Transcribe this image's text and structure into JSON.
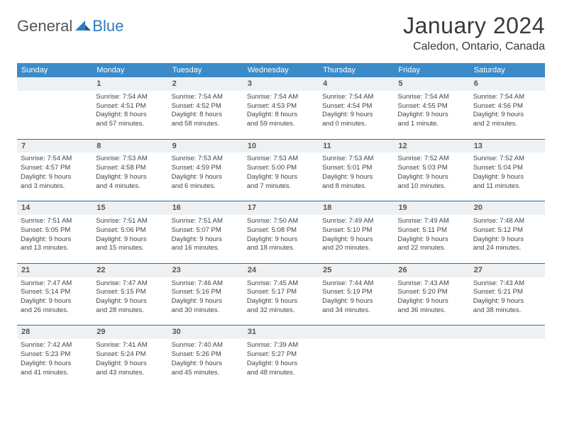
{
  "logo": {
    "general": "General",
    "blue": "Blue",
    "tri_color": "#2f7bbf"
  },
  "header": {
    "title": "January 2024",
    "location": "Caledon, Ontario, Canada"
  },
  "colors": {
    "header_bg": "#3b8bc9",
    "header_fg": "#ffffff",
    "daynum_bg": "#eef1f3",
    "border_color": "#2d6ea5",
    "text_color": "#444444"
  },
  "days_of_week": [
    "Sunday",
    "Monday",
    "Tuesday",
    "Wednesday",
    "Thursday",
    "Friday",
    "Saturday"
  ],
  "weeks": [
    {
      "nums": [
        "",
        "1",
        "2",
        "3",
        "4",
        "5",
        "6"
      ],
      "cells": [
        null,
        {
          "sr": "Sunrise: 7:54 AM",
          "ss": "Sunset: 4:51 PM",
          "d1": "Daylight: 8 hours",
          "d2": "and 57 minutes."
        },
        {
          "sr": "Sunrise: 7:54 AM",
          "ss": "Sunset: 4:52 PM",
          "d1": "Daylight: 8 hours",
          "d2": "and 58 minutes."
        },
        {
          "sr": "Sunrise: 7:54 AM",
          "ss": "Sunset: 4:53 PM",
          "d1": "Daylight: 8 hours",
          "d2": "and 59 minutes."
        },
        {
          "sr": "Sunrise: 7:54 AM",
          "ss": "Sunset: 4:54 PM",
          "d1": "Daylight: 9 hours",
          "d2": "and 0 minutes."
        },
        {
          "sr": "Sunrise: 7:54 AM",
          "ss": "Sunset: 4:55 PM",
          "d1": "Daylight: 9 hours",
          "d2": "and 1 minute."
        },
        {
          "sr": "Sunrise: 7:54 AM",
          "ss": "Sunset: 4:56 PM",
          "d1": "Daylight: 9 hours",
          "d2": "and 2 minutes."
        }
      ]
    },
    {
      "nums": [
        "7",
        "8",
        "9",
        "10",
        "11",
        "12",
        "13"
      ],
      "cells": [
        {
          "sr": "Sunrise: 7:54 AM",
          "ss": "Sunset: 4:57 PM",
          "d1": "Daylight: 9 hours",
          "d2": "and 3 minutes."
        },
        {
          "sr": "Sunrise: 7:53 AM",
          "ss": "Sunset: 4:58 PM",
          "d1": "Daylight: 9 hours",
          "d2": "and 4 minutes."
        },
        {
          "sr": "Sunrise: 7:53 AM",
          "ss": "Sunset: 4:59 PM",
          "d1": "Daylight: 9 hours",
          "d2": "and 6 minutes."
        },
        {
          "sr": "Sunrise: 7:53 AM",
          "ss": "Sunset: 5:00 PM",
          "d1": "Daylight: 9 hours",
          "d2": "and 7 minutes."
        },
        {
          "sr": "Sunrise: 7:53 AM",
          "ss": "Sunset: 5:01 PM",
          "d1": "Daylight: 9 hours",
          "d2": "and 8 minutes."
        },
        {
          "sr": "Sunrise: 7:52 AM",
          "ss": "Sunset: 5:03 PM",
          "d1": "Daylight: 9 hours",
          "d2": "and 10 minutes."
        },
        {
          "sr": "Sunrise: 7:52 AM",
          "ss": "Sunset: 5:04 PM",
          "d1": "Daylight: 9 hours",
          "d2": "and 11 minutes."
        }
      ]
    },
    {
      "nums": [
        "14",
        "15",
        "16",
        "17",
        "18",
        "19",
        "20"
      ],
      "cells": [
        {
          "sr": "Sunrise: 7:51 AM",
          "ss": "Sunset: 5:05 PM",
          "d1": "Daylight: 9 hours",
          "d2": "and 13 minutes."
        },
        {
          "sr": "Sunrise: 7:51 AM",
          "ss": "Sunset: 5:06 PM",
          "d1": "Daylight: 9 hours",
          "d2": "and 15 minutes."
        },
        {
          "sr": "Sunrise: 7:51 AM",
          "ss": "Sunset: 5:07 PM",
          "d1": "Daylight: 9 hours",
          "d2": "and 16 minutes."
        },
        {
          "sr": "Sunrise: 7:50 AM",
          "ss": "Sunset: 5:08 PM",
          "d1": "Daylight: 9 hours",
          "d2": "and 18 minutes."
        },
        {
          "sr": "Sunrise: 7:49 AM",
          "ss": "Sunset: 5:10 PM",
          "d1": "Daylight: 9 hours",
          "d2": "and 20 minutes."
        },
        {
          "sr": "Sunrise: 7:49 AM",
          "ss": "Sunset: 5:11 PM",
          "d1": "Daylight: 9 hours",
          "d2": "and 22 minutes."
        },
        {
          "sr": "Sunrise: 7:48 AM",
          "ss": "Sunset: 5:12 PM",
          "d1": "Daylight: 9 hours",
          "d2": "and 24 minutes."
        }
      ]
    },
    {
      "nums": [
        "21",
        "22",
        "23",
        "24",
        "25",
        "26",
        "27"
      ],
      "cells": [
        {
          "sr": "Sunrise: 7:47 AM",
          "ss": "Sunset: 5:14 PM",
          "d1": "Daylight: 9 hours",
          "d2": "and 26 minutes."
        },
        {
          "sr": "Sunrise: 7:47 AM",
          "ss": "Sunset: 5:15 PM",
          "d1": "Daylight: 9 hours",
          "d2": "and 28 minutes."
        },
        {
          "sr": "Sunrise: 7:46 AM",
          "ss": "Sunset: 5:16 PM",
          "d1": "Daylight: 9 hours",
          "d2": "and 30 minutes."
        },
        {
          "sr": "Sunrise: 7:45 AM",
          "ss": "Sunset: 5:17 PM",
          "d1": "Daylight: 9 hours",
          "d2": "and 32 minutes."
        },
        {
          "sr": "Sunrise: 7:44 AM",
          "ss": "Sunset: 5:19 PM",
          "d1": "Daylight: 9 hours",
          "d2": "and 34 minutes."
        },
        {
          "sr": "Sunrise: 7:43 AM",
          "ss": "Sunset: 5:20 PM",
          "d1": "Daylight: 9 hours",
          "d2": "and 36 minutes."
        },
        {
          "sr": "Sunrise: 7:43 AM",
          "ss": "Sunset: 5:21 PM",
          "d1": "Daylight: 9 hours",
          "d2": "and 38 minutes."
        }
      ]
    },
    {
      "nums": [
        "28",
        "29",
        "30",
        "31",
        "",
        "",
        ""
      ],
      "cells": [
        {
          "sr": "Sunrise: 7:42 AM",
          "ss": "Sunset: 5:23 PM",
          "d1": "Daylight: 9 hours",
          "d2": "and 41 minutes."
        },
        {
          "sr": "Sunrise: 7:41 AM",
          "ss": "Sunset: 5:24 PM",
          "d1": "Daylight: 9 hours",
          "d2": "and 43 minutes."
        },
        {
          "sr": "Sunrise: 7:40 AM",
          "ss": "Sunset: 5:26 PM",
          "d1": "Daylight: 9 hours",
          "d2": "and 45 minutes."
        },
        {
          "sr": "Sunrise: 7:39 AM",
          "ss": "Sunset: 5:27 PM",
          "d1": "Daylight: 9 hours",
          "d2": "and 48 minutes."
        },
        null,
        null,
        null
      ]
    }
  ]
}
